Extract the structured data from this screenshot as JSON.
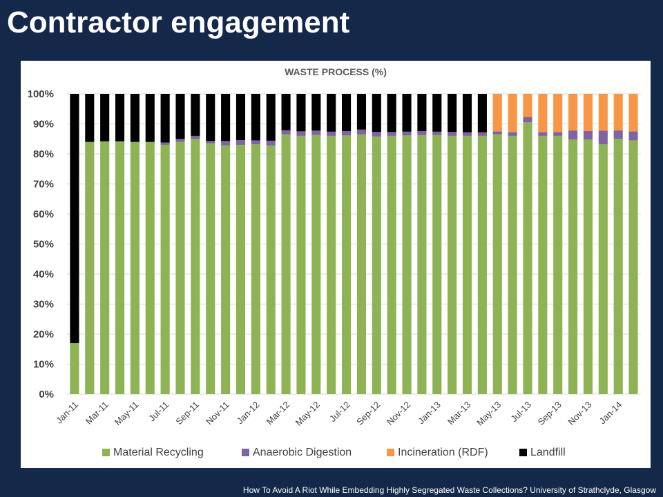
{
  "slide": {
    "title": "Contractor engagement",
    "footer": "How To Avoid A Riot While Embedding Highly Segregated Waste Collections? University of Strathclyde, Glasgow"
  },
  "chart_data": {
    "type": "bar",
    "stacked": true,
    "title": "WASTE PROCESS (%)",
    "ylim": [
      0,
      100
    ],
    "yticks": [
      "0%",
      "10%",
      "20%",
      "30%",
      "40%",
      "50%",
      "60%",
      "70%",
      "80%",
      "90%",
      "100%"
    ],
    "grid": true,
    "legend_position": "bottom",
    "x_tick_labels": [
      "Jan-11",
      "Mar-11",
      "May-11",
      "Jul-11",
      "Sep-11",
      "Nov-11",
      "Jan-12",
      "Mar-12",
      "May-12",
      "Jul-12",
      "Sep-12",
      "Nov-12",
      "Jan-13",
      "Mar-13",
      "May-13",
      "Jul-13",
      "Sep-13",
      "Nov-13",
      "Jan-14"
    ],
    "categories": [
      "Jan-11",
      "Feb-11",
      "Mar-11",
      "Apr-11",
      "May-11",
      "Jun-11",
      "Jul-11",
      "Aug-11",
      "Sep-11",
      "Oct-11",
      "Nov-11",
      "Dec-11",
      "Jan-12",
      "Feb-12",
      "Mar-12",
      "Apr-12",
      "May-12",
      "Jun-12",
      "Jul-12",
      "Aug-12",
      "Sep-12",
      "Oct-12",
      "Nov-12",
      "Dec-12",
      "Jan-13",
      "Feb-13",
      "Mar-13",
      "Apr-13",
      "May-13",
      "Jun-13",
      "Jul-13",
      "Aug-13",
      "Sep-13",
      "Oct-13",
      "Nov-13",
      "Dec-13",
      "Jan-14",
      "Feb-14"
    ],
    "series": [
      {
        "name": "Material Recycling",
        "color": "#8db355",
        "values": [
          17,
          84,
          84.2,
          84.2,
          84,
          84,
          83,
          84,
          85,
          83.5,
          82.8,
          83,
          83.2,
          82.8,
          86.5,
          86,
          86.3,
          86,
          86.2,
          86.5,
          85.8,
          86,
          86.2,
          86.3,
          86.3,
          86,
          86,
          86,
          86.5,
          86,
          90.5,
          86,
          86,
          84.8,
          84.8,
          83.2,
          85,
          84.5
        ]
      },
      {
        "name": "Anaerobic Digestion",
        "color": "#8064a2",
        "values": [
          0,
          0,
          0,
          0,
          0,
          0,
          0.8,
          1,
          1,
          0.8,
          1.5,
          1.6,
          1.3,
          1.6,
          1.4,
          1.5,
          1.5,
          1.4,
          1.4,
          1.6,
          1.5,
          1.3,
          1.2,
          1.3,
          1.1,
          1.3,
          1.2,
          1.2,
          1,
          1.3,
          1.8,
          1.3,
          1.3,
          3,
          2.8,
          4.5,
          2.8,
          3
        ]
      },
      {
        "name": "Incineration (RDF)",
        "color": "#f79646",
        "values": [
          0,
          0,
          0,
          0,
          0,
          0,
          0,
          0,
          0,
          0,
          0,
          0,
          0,
          0,
          0,
          0,
          0,
          0,
          0,
          0,
          0,
          0,
          0,
          0,
          0,
          0,
          0,
          0,
          12.5,
          12.7,
          7.7,
          12.7,
          12.7,
          12.2,
          12.4,
          12.3,
          12.2,
          12.5
        ]
      },
      {
        "name": "Landfill",
        "color": "#000000",
        "values": [
          83,
          16,
          15.8,
          15.8,
          16,
          16,
          16.2,
          15,
          14,
          15.7,
          15.7,
          15.4,
          15.5,
          15.6,
          12.1,
          12.5,
          12.2,
          12.6,
          12.4,
          11.9,
          12.7,
          12.7,
          12.6,
          12.4,
          12.6,
          12.7,
          12.8,
          12.8,
          0,
          0,
          0,
          0,
          0,
          0,
          0,
          0,
          0,
          0
        ]
      }
    ]
  }
}
